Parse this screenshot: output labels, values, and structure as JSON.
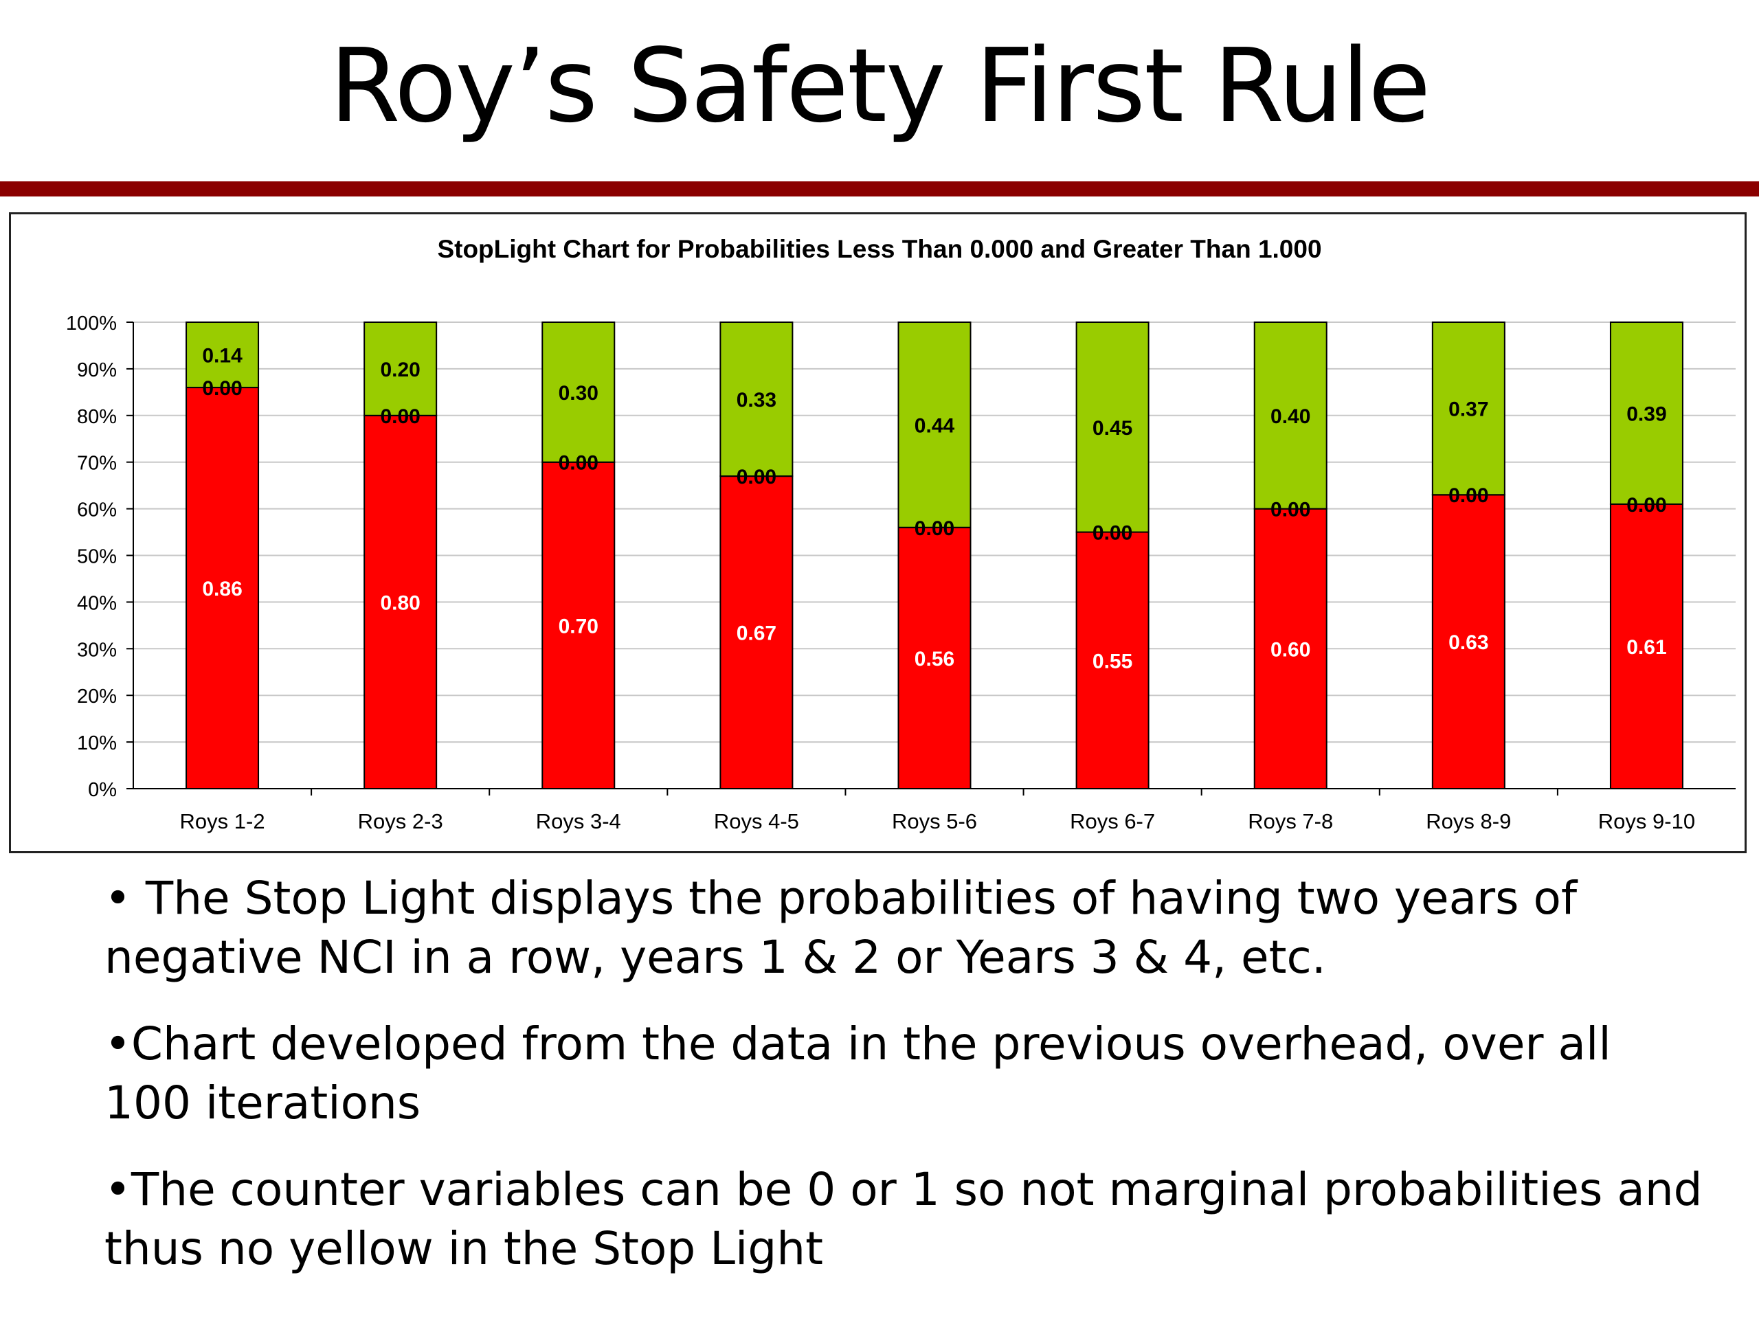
{
  "slide": {
    "title": "Roy’s Safety First Rule",
    "rule_color": "#8b0000"
  },
  "chart_data": {
    "type": "bar",
    "stacked": true,
    "title": "StopLight Chart for Probabilities Less Than 0.000 and Greater Than 1.000",
    "xlabel": "",
    "ylabel": "",
    "ylim": [
      0,
      1
    ],
    "y_ticks": [
      "0%",
      "10%",
      "20%",
      "30%",
      "40%",
      "50%",
      "60%",
      "70%",
      "80%",
      "90%",
      "100%"
    ],
    "grid": true,
    "legend": "none",
    "categories": [
      "Roys 1-2",
      "Roys 2-3",
      "Roys 3-4",
      "Roys 4-5",
      "Roys 5-6",
      "Roys 6-7",
      "Roys 7-8",
      "Roys 8-9",
      "Roys 9-10"
    ],
    "series": [
      {
        "color": "#ff0000",
        "label_color": "#ffffff",
        "values": [
          0.86,
          0.8,
          0.7,
          0.67,
          0.56,
          0.55,
          0.6,
          0.63,
          0.61
        ],
        "labels": [
          "0.86",
          "0.80",
          "0.70",
          "0.67",
          "0.56",
          "0.55",
          "0.60",
          "0.63",
          "0.61"
        ]
      },
      {
        "color": "#ffff00",
        "label_color": "#000000",
        "values": [
          0,
          0,
          0,
          0,
          0,
          0,
          0,
          0,
          0
        ],
        "labels": [
          "0.00",
          "0.00",
          "0.00",
          "0.00",
          "0.00",
          "0.00",
          "0.00",
          "0.00",
          "0.00"
        ]
      },
      {
        "color": "#99cc00",
        "label_color": "#000000",
        "values": [
          0.14,
          0.2,
          0.3,
          0.33,
          0.44,
          0.45,
          0.4,
          0.37,
          0.39
        ],
        "labels": [
          "0.14",
          "0.20",
          "0.30",
          "0.33",
          "0.44",
          "0.45",
          "0.40",
          "0.37",
          "0.39"
        ]
      }
    ]
  },
  "bullets": [
    "• The Stop Light displays the probabilities of having two years of negative NCI in a row, years 1 & 2 or Years 3 & 4, etc.",
    "•Chart developed from the data in the previous overhead, over all 100 iterations",
    "•The counter variables can be 0 or 1 so not marginal probabilities and thus no yellow in the Stop Light"
  ]
}
